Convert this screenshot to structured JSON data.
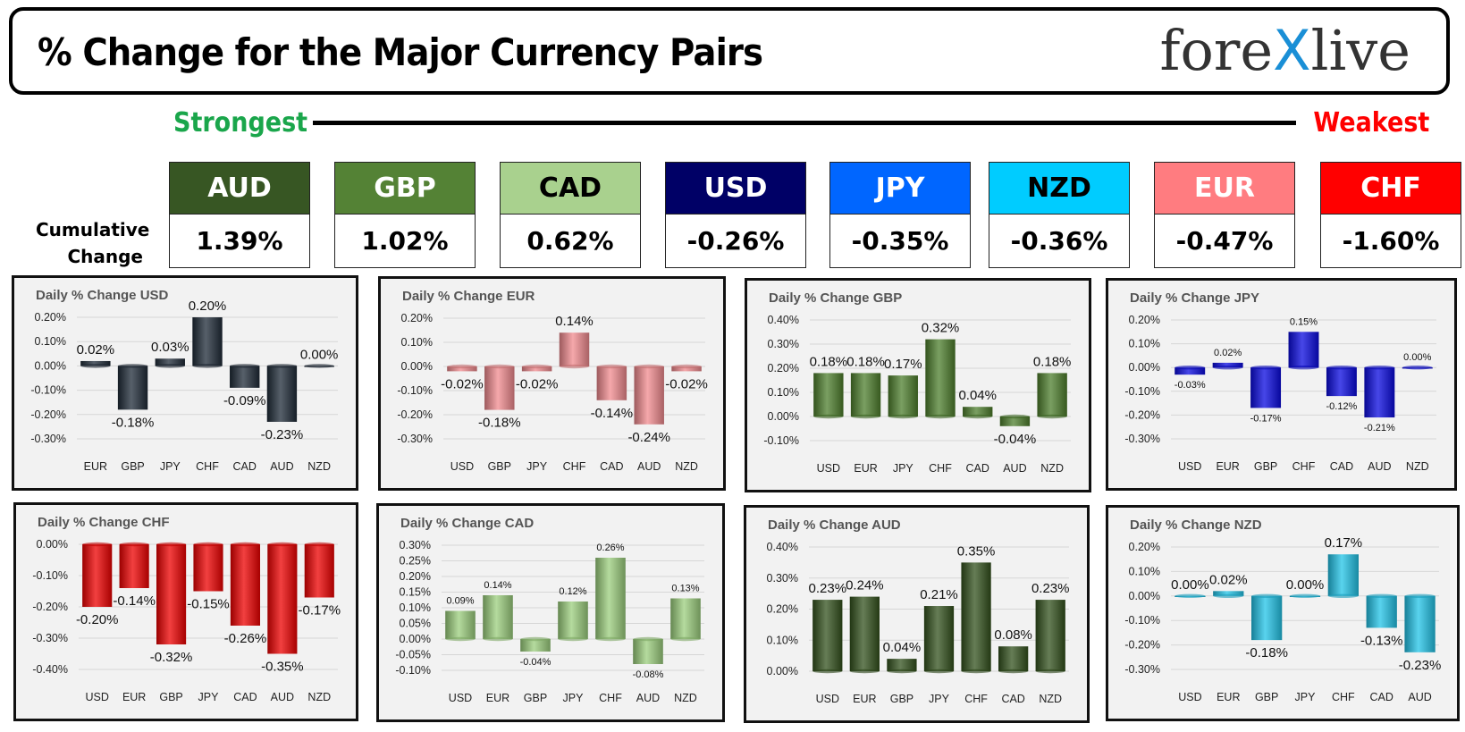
{
  "header": {
    "title": "% Change for the Major Currency Pairs",
    "logo_left": "fore",
    "logo_x": "X",
    "logo_right": "live"
  },
  "ranking": {
    "strongest_label": "Strongest",
    "weakest_label": "Weakest",
    "cumulative_label_1": "Cumulative",
    "cumulative_label_2": "Change",
    "currencies": [
      {
        "code": "AUD",
        "value": "1.39%",
        "bg": "#375623",
        "fg": "#ffffff"
      },
      {
        "code": "GBP",
        "value": "1.02%",
        "bg": "#548235",
        "fg": "#ffffff"
      },
      {
        "code": "CAD",
        "value": "0.62%",
        "bg": "#a9d18e",
        "fg": "#000000"
      },
      {
        "code": "USD",
        "value": "-0.26%",
        "bg": "#000066",
        "fg": "#ffffff"
      },
      {
        "code": "JPY",
        "value": "-0.35%",
        "bg": "#0066ff",
        "fg": "#ffffff"
      },
      {
        "code": "NZD",
        "value": "-0.36%",
        "bg": "#00ccff",
        "fg": "#000000"
      },
      {
        "code": "EUR",
        "value": "-0.47%",
        "bg": "#ff7c80",
        "fg": "#ffffff"
      },
      {
        "code": "CHF",
        "value": "-1.60%",
        "bg": "#ff0000",
        "fg": "#ffffff"
      }
    ]
  },
  "chart_data": [
    {
      "type": "bar",
      "title": "Daily % Change USD",
      "categories": [
        "EUR",
        "GBP",
        "JPY",
        "CHF",
        "CAD",
        "AUD",
        "NZD"
      ],
      "values": [
        0.02,
        -0.18,
        0.03,
        0.2,
        -0.09,
        -0.23,
        0.0
      ],
      "labels": [
        "0.02%",
        "-0.18%",
        "0.03%",
        "0.20%",
        "-0.09%",
        "-0.23%",
        "0.00%"
      ],
      "ylim": [
        -0.3,
        0.2
      ],
      "yticks": [
        "0.20%",
        "0.10%",
        "0.00%",
        "-0.10%",
        "-0.20%",
        "-0.30%"
      ],
      "color": "#1f2b38",
      "grid": true
    },
    {
      "type": "bar",
      "title": "Daily % Change EUR",
      "categories": [
        "USD",
        "GBP",
        "JPY",
        "CHF",
        "CAD",
        "AUD",
        "NZD"
      ],
      "values": [
        -0.02,
        -0.18,
        -0.02,
        0.14,
        -0.14,
        -0.24,
        -0.02
      ],
      "labels": [
        "-0.02%",
        "-0.18%",
        "-0.02%",
        "0.14%",
        "-0.14%",
        "-0.24%",
        "-0.02%"
      ],
      "ylim": [
        -0.3,
        0.2
      ],
      "yticks": [
        "0.20%",
        "0.10%",
        "0.00%",
        "-0.10%",
        "-0.20%",
        "-0.30%"
      ],
      "color": "#f28b8f",
      "grid": true
    },
    {
      "type": "bar",
      "title": "Daily % Change GBP",
      "categories": [
        "USD",
        "EUR",
        "JPY",
        "CHF",
        "CAD",
        "AUD",
        "NZD"
      ],
      "values": [
        0.18,
        0.18,
        0.17,
        0.32,
        0.04,
        -0.04,
        0.18
      ],
      "labels": [
        "0.18%",
        "0.18%",
        "0.17%",
        "0.32%",
        "0.04%",
        "-0.04%",
        "0.18%"
      ],
      "ylim": [
        -0.1,
        0.4
      ],
      "yticks": [
        "0.40%",
        "0.30%",
        "0.20%",
        "0.10%",
        "0.00%",
        "-0.10%"
      ],
      "color": "#4e7f2d",
      "grid": true
    },
    {
      "type": "bar",
      "title": "Daily % Change JPY",
      "categories": [
        "USD",
        "EUR",
        "GBP",
        "CHF",
        "CAD",
        "AUD",
        "NZD"
      ],
      "values": [
        -0.03,
        0.02,
        -0.17,
        0.15,
        -0.12,
        -0.21,
        0.0
      ],
      "labels": [
        "-0.03%",
        "0.02%",
        "-0.17%",
        "0.15%",
        "-0.12%",
        "-0.21%",
        "0.00%"
      ],
      "ylim": [
        -0.3,
        0.2
      ],
      "yticks": [
        "0.20%",
        "0.10%",
        "0.00%",
        "-0.10%",
        "-0.20%",
        "-0.30%"
      ],
      "color": "#0a0ae0",
      "grid": true
    },
    {
      "type": "bar",
      "title": "Daily % Change CHF",
      "categories": [
        "USD",
        "EUR",
        "GBP",
        "JPY",
        "CAD",
        "AUD",
        "NZD"
      ],
      "values": [
        -0.2,
        -0.14,
        -0.32,
        -0.15,
        -0.26,
        -0.35,
        -0.17
      ],
      "labels": [
        "-0.20%",
        "-0.14%",
        "-0.32%",
        "-0.15%",
        "-0.26%",
        "-0.35%",
        "-0.17%"
      ],
      "ylim": [
        -0.4,
        0.0
      ],
      "yticks": [
        "0.00%",
        "-0.10%",
        "-0.20%",
        "-0.30%",
        "-0.40%"
      ],
      "color": "#ee0000",
      "grid": true
    },
    {
      "type": "bar",
      "title": "Daily % Change CAD",
      "categories": [
        "USD",
        "EUR",
        "GBP",
        "JPY",
        "CHF",
        "AUD",
        "NZD"
      ],
      "values": [
        0.09,
        0.14,
        -0.04,
        0.12,
        0.26,
        -0.08,
        0.13
      ],
      "labels": [
        "0.09%",
        "0.14%",
        "-0.04%",
        "0.12%",
        "0.26%",
        "-0.08%",
        "0.13%"
      ],
      "ylim": [
        -0.1,
        0.3
      ],
      "yticks": [
        "0.30%",
        "0.25%",
        "0.20%",
        "0.15%",
        "0.10%",
        "0.05%",
        "0.00%",
        "-0.05%",
        "-0.10%"
      ],
      "color": "#9ccf7d",
      "grid": true
    },
    {
      "type": "bar",
      "title": "Daily % Change AUD",
      "categories": [
        "USD",
        "EUR",
        "GBP",
        "JPY",
        "CHF",
        "CAD",
        "NZD"
      ],
      "values": [
        0.23,
        0.24,
        0.04,
        0.21,
        0.35,
        0.08,
        0.23
      ],
      "labels": [
        "0.23%",
        "0.24%",
        "0.04%",
        "0.21%",
        "0.35%",
        "0.08%",
        "0.23%"
      ],
      "ylim": [
        0.0,
        0.4
      ],
      "yticks": [
        "0.40%",
        "0.30%",
        "0.20%",
        "0.10%",
        "0.00%"
      ],
      "color": "#33521d",
      "grid": true
    },
    {
      "type": "bar",
      "title": "Daily % Change NZD",
      "categories": [
        "USD",
        "EUR",
        "GBP",
        "JPY",
        "CHF",
        "CAD",
        "AUD"
      ],
      "values": [
        0.0,
        0.02,
        -0.18,
        0.0,
        0.17,
        -0.13,
        -0.23
      ],
      "labels": [
        "0.00%",
        "0.02%",
        "-0.18%",
        "0.00%",
        "0.17%",
        "-0.13%",
        "-0.23%"
      ],
      "ylim": [
        -0.3,
        0.2
      ],
      "yticks": [
        "0.20%",
        "0.10%",
        "0.00%",
        "-0.10%",
        "-0.20%",
        "-0.30%"
      ],
      "color": "#22c4e8",
      "grid": true
    }
  ]
}
